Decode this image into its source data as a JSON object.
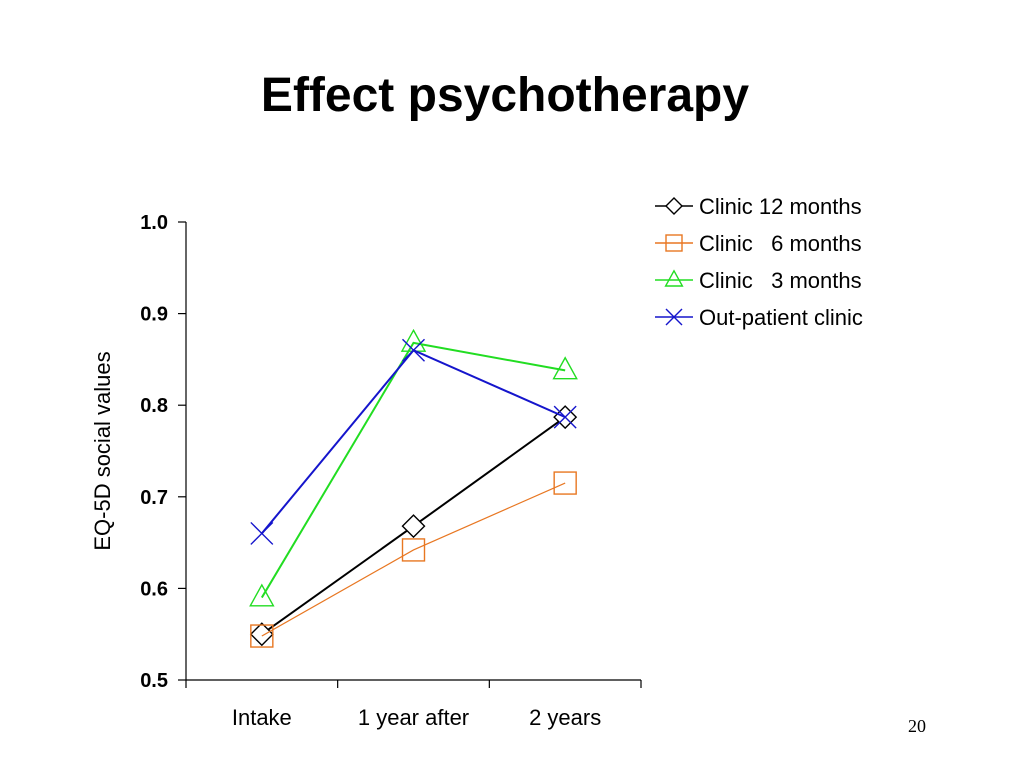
{
  "slide": {
    "title": "Effect psychotherapy",
    "page_number": "20"
  },
  "chart_data": {
    "type": "line",
    "title": "",
    "xlabel": "",
    "ylabel": "EQ-5D social values",
    "categories": [
      "Intake",
      "1 year after",
      "2 years"
    ],
    "ylim": [
      0.5,
      1.0
    ],
    "yticks": [
      "0.5",
      "0.6",
      "0.7",
      "0.8",
      "0.9",
      "1.0"
    ],
    "grid": false,
    "legend_position": "top-right",
    "series": [
      {
        "name": "Clinic 12 months",
        "values": [
          0.55,
          0.668,
          0.787
        ],
        "color": "#000000",
        "marker": "diamond"
      },
      {
        "name": "Clinic   6 months",
        "values": [
          0.548,
          0.642,
          0.715
        ],
        "color": "#E87722",
        "marker": "square"
      },
      {
        "name": "Clinic   3 months",
        "values": [
          0.59,
          0.868,
          0.838
        ],
        "color": "#22DD22",
        "marker": "triangle"
      },
      {
        "name": "Out-patient clinic",
        "values": [
          0.66,
          0.86,
          0.787
        ],
        "color": "#1515CC",
        "marker": "x"
      }
    ]
  }
}
